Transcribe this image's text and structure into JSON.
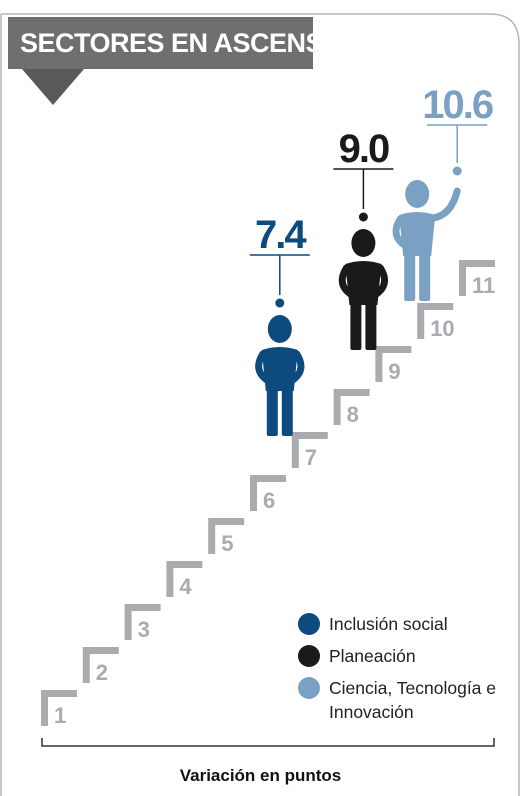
{
  "header": {
    "title": "SECTORES EN ASCENSO"
  },
  "colors": {
    "inclusion": "#0d4a7e",
    "planeacion": "#1a1a1a",
    "ciencia": "#7aa0c4",
    "step": "#a9abae",
    "header_bg": "#6e6f71"
  },
  "chart_data": {
    "type": "bar",
    "xlabel": "Variación en puntos",
    "steps": [
      1,
      2,
      3,
      4,
      5,
      6,
      7,
      8,
      9,
      10,
      11
    ],
    "series": [
      {
        "name": "Inclusión social",
        "value": 7.4,
        "label": "7.4",
        "color": "#0d4a7e"
      },
      {
        "name": "Planeación",
        "value": 9.0,
        "label": "9.0",
        "color": "#1a1a1a"
      },
      {
        "name": "Ciencia, Tecnología e Innovación",
        "value": 10.6,
        "label": "10.6",
        "color": "#7aa0c4"
      }
    ],
    "legend_position": "bottom-right"
  },
  "legend": [
    {
      "label": "Inclusión social",
      "color": "#0d4a7e"
    },
    {
      "label": "Planeación",
      "color": "#1a1a1a"
    },
    {
      "label": "Ciencia, Tecnología e",
      "label2": "Innovación",
      "color": "#7aa0c4"
    }
  ]
}
